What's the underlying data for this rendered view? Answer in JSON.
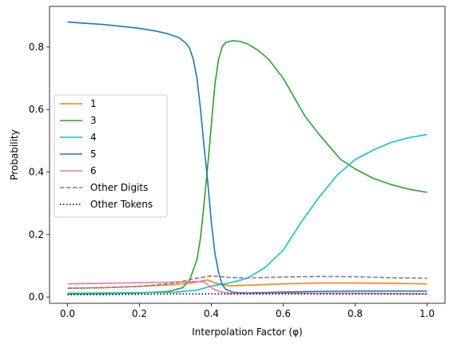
{
  "chart_data": {
    "type": "line",
    "title": "",
    "xlabel": "Interpolation Factor (φ)",
    "ylabel": "Probability",
    "xlim": [
      -0.05,
      1.05
    ],
    "ylim": [
      -0.02,
      0.93
    ],
    "xticks": [
      0.0,
      0.2,
      0.4,
      0.6,
      0.8,
      1.0
    ],
    "xtick_labels": [
      "0.0",
      "0.2",
      "0.4",
      "0.6",
      "0.8",
      "1.0"
    ],
    "yticks": [
      0.0,
      0.2,
      0.4,
      0.6,
      0.8
    ],
    "ytick_labels": [
      "0.0",
      "0.2",
      "0.4",
      "0.6",
      "0.8"
    ],
    "grid": false,
    "legend_position": "center-left",
    "series": [
      {
        "name": "1",
        "color": "#ff7f0e",
        "style": "solid",
        "points": [
          [
            0,
            0.028
          ],
          [
            0.1,
            0.03
          ],
          [
            0.2,
            0.034
          ],
          [
            0.3,
            0.04
          ],
          [
            0.35,
            0.046
          ],
          [
            0.39,
            0.055
          ],
          [
            0.41,
            0.045
          ],
          [
            0.45,
            0.036
          ],
          [
            0.5,
            0.038
          ],
          [
            0.6,
            0.042
          ],
          [
            0.7,
            0.045
          ],
          [
            0.8,
            0.045
          ],
          [
            0.9,
            0.044
          ],
          [
            1.0,
            0.042
          ]
        ]
      },
      {
        "name": "3",
        "color": "#2ca02c",
        "style": "solid",
        "points": [
          [
            0,
            0.01
          ],
          [
            0.1,
            0.011
          ],
          [
            0.2,
            0.013
          ],
          [
            0.28,
            0.018
          ],
          [
            0.32,
            0.03
          ],
          [
            0.34,
            0.055
          ],
          [
            0.36,
            0.12
          ],
          [
            0.37,
            0.19
          ],
          [
            0.38,
            0.3
          ],
          [
            0.39,
            0.42
          ],
          [
            0.4,
            0.55
          ],
          [
            0.41,
            0.68
          ],
          [
            0.42,
            0.76
          ],
          [
            0.43,
            0.8
          ],
          [
            0.44,
            0.815
          ],
          [
            0.46,
            0.82
          ],
          [
            0.48,
            0.818
          ],
          [
            0.5,
            0.81
          ],
          [
            0.53,
            0.79
          ],
          [
            0.56,
            0.76
          ],
          [
            0.6,
            0.7
          ],
          [
            0.63,
            0.64
          ],
          [
            0.66,
            0.58
          ],
          [
            0.7,
            0.52
          ],
          [
            0.73,
            0.48
          ],
          [
            0.76,
            0.44
          ],
          [
            0.8,
            0.41
          ],
          [
            0.85,
            0.38
          ],
          [
            0.9,
            0.36
          ],
          [
            0.95,
            0.345
          ],
          [
            1.0,
            0.335
          ]
        ]
      },
      {
        "name": "4",
        "color": "#17becf",
        "style": "solid",
        "points": [
          [
            0,
            0.012
          ],
          [
            0.1,
            0.013
          ],
          [
            0.2,
            0.014
          ],
          [
            0.3,
            0.016
          ],
          [
            0.36,
            0.022
          ],
          [
            0.4,
            0.035
          ],
          [
            0.45,
            0.045
          ],
          [
            0.5,
            0.06
          ],
          [
            0.55,
            0.095
          ],
          [
            0.6,
            0.15
          ],
          [
            0.65,
            0.24
          ],
          [
            0.7,
            0.32
          ],
          [
            0.75,
            0.39
          ],
          [
            0.8,
            0.44
          ],
          [
            0.85,
            0.47
          ],
          [
            0.9,
            0.495
          ],
          [
            0.95,
            0.51
          ],
          [
            1.0,
            0.52
          ]
        ]
      },
      {
        "name": "5",
        "color": "#1f77b4",
        "style": "solid",
        "points": [
          [
            0,
            0.88
          ],
          [
            0.05,
            0.876
          ],
          [
            0.1,
            0.872
          ],
          [
            0.15,
            0.866
          ],
          [
            0.2,
            0.86
          ],
          [
            0.25,
            0.85
          ],
          [
            0.28,
            0.842
          ],
          [
            0.31,
            0.83
          ],
          [
            0.33,
            0.812
          ],
          [
            0.34,
            0.795
          ],
          [
            0.35,
            0.76
          ],
          [
            0.36,
            0.7
          ],
          [
            0.37,
            0.6
          ],
          [
            0.38,
            0.48
          ],
          [
            0.39,
            0.37
          ],
          [
            0.4,
            0.24
          ],
          [
            0.41,
            0.14
          ],
          [
            0.42,
            0.08
          ],
          [
            0.43,
            0.04
          ],
          [
            0.44,
            0.025
          ],
          [
            0.46,
            0.015
          ],
          [
            0.5,
            0.013
          ],
          [
            0.6,
            0.016
          ],
          [
            0.7,
            0.018
          ],
          [
            0.8,
            0.019
          ],
          [
            0.9,
            0.019
          ],
          [
            1.0,
            0.019
          ]
        ]
      },
      {
        "name": "6",
        "color": "#e377c2",
        "style": "solid",
        "points": [
          [
            0,
            0.042
          ],
          [
            0.1,
            0.044
          ],
          [
            0.2,
            0.046
          ],
          [
            0.3,
            0.048
          ],
          [
            0.36,
            0.05
          ],
          [
            0.38,
            0.048
          ],
          [
            0.4,
            0.03
          ],
          [
            0.42,
            0.018
          ],
          [
            0.45,
            0.012
          ],
          [
            0.5,
            0.011
          ],
          [
            0.6,
            0.012
          ],
          [
            0.7,
            0.012
          ],
          [
            0.8,
            0.012
          ],
          [
            0.9,
            0.011
          ],
          [
            1.0,
            0.01
          ]
        ]
      },
      {
        "name": "Other Digits",
        "color": "#7f7f7f",
        "style": "dashed",
        "points": [
          [
            0,
            0.028
          ],
          [
            0.1,
            0.03
          ],
          [
            0.2,
            0.034
          ],
          [
            0.3,
            0.045
          ],
          [
            0.35,
            0.058
          ],
          [
            0.4,
            0.068
          ],
          [
            0.45,
            0.063
          ],
          [
            0.5,
            0.061
          ],
          [
            0.6,
            0.064
          ],
          [
            0.7,
            0.066
          ],
          [
            0.8,
            0.065
          ],
          [
            0.9,
            0.062
          ],
          [
            1.0,
            0.06
          ]
        ]
      },
      {
        "name": "Other Tokens",
        "color": "#000000",
        "style": "dotted",
        "points": [
          [
            0,
            0.008
          ],
          [
            0.1,
            0.008
          ],
          [
            0.2,
            0.009
          ],
          [
            0.3,
            0.01
          ],
          [
            0.4,
            0.01
          ],
          [
            0.5,
            0.01
          ],
          [
            0.6,
            0.01
          ],
          [
            0.7,
            0.01
          ],
          [
            0.8,
            0.01
          ],
          [
            0.9,
            0.01
          ],
          [
            1.0,
            0.01
          ]
        ]
      }
    ]
  }
}
